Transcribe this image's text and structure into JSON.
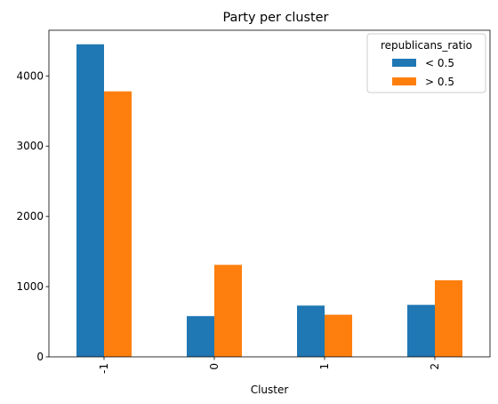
{
  "chart_data": {
    "type": "bar",
    "title": "Party per cluster",
    "xlabel": "Cluster",
    "ylabel": "",
    "categories": [
      "-1",
      "0",
      "1",
      "2"
    ],
    "series": [
      {
        "name": "< 0.5",
        "color": "#1f77b4",
        "values": [
          4450,
          580,
          730,
          740
        ]
      },
      {
        "name": "> 0.5",
        "color": "#ff7f0e",
        "values": [
          3780,
          1310,
          600,
          1090
        ]
      }
    ],
    "ylim": [
      0,
      4650
    ],
    "yticks": [
      0,
      1000,
      2000,
      3000,
      4000
    ],
    "legend": {
      "title": "republicans_ratio",
      "position": "top-right"
    },
    "grid": false
  }
}
